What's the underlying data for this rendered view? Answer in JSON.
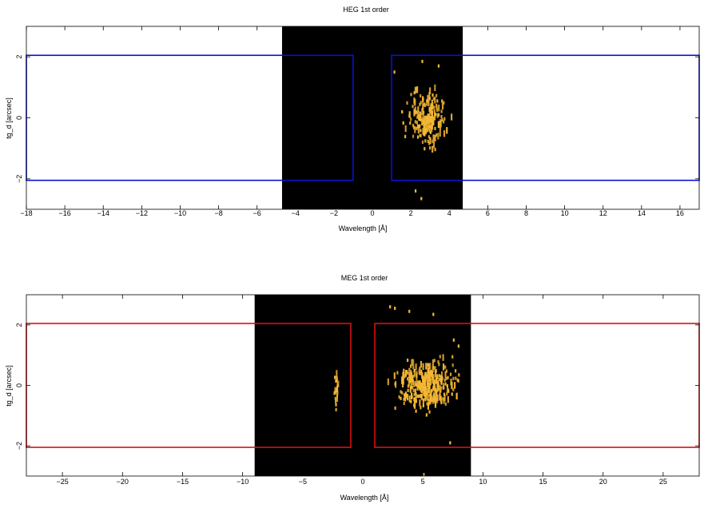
{
  "chart_data": [
    {
      "type": "heatmap",
      "title": "HEG 1st order",
      "xlabel": "Wavelength [Å]",
      "ylabel": "tg_d [arcsec]",
      "xlim": [
        -18,
        17
      ],
      "ylim": [
        -3.0,
        3.0
      ],
      "x_ticks": [
        -18,
        -16,
        -14,
        -12,
        -10,
        -8,
        -6,
        -4,
        -2,
        0,
        2,
        4,
        6,
        8,
        10,
        12,
        14,
        16
      ],
      "x_tick_labels": [
        "−18",
        "−16",
        "−14",
        "−12",
        "−10",
        "−8",
        "−6",
        "−4",
        "−2",
        "0",
        "2",
        "4",
        "6",
        "8",
        "10",
        "12",
        "14",
        "16"
      ],
      "y_ticks": [
        -2,
        0,
        2
      ],
      "y_tick_labels": [
        "−2",
        "0",
        "2"
      ],
      "image_extent_x": [
        -4.7,
        4.7
      ],
      "image_background": "#000000",
      "event_color": "#f5b835",
      "event_cluster": {
        "x_center": 2.8,
        "x_halfwidth": 1.4,
        "y_center": 0.0,
        "y_halfwidth": 1.3,
        "count": 190
      },
      "event_strays": [
        [
          2.5,
          -2.65
        ],
        [
          2.2,
          -2.4
        ],
        [
          2.55,
          1.85
        ],
        [
          3.4,
          1.7
        ],
        [
          1.1,
          1.5
        ]
      ],
      "regions": [
        {
          "x0": -18,
          "x1": -1.0,
          "y0": -2.05,
          "y1": 2.05
        },
        {
          "x0": 1.0,
          "x1": 17,
          "y0": -2.05,
          "y1": 2.05
        }
      ],
      "region_color": "#0a10d8"
    },
    {
      "type": "heatmap",
      "title": "MEG 1st order",
      "xlabel": "Wavelength [Å]",
      "ylabel": "tg_d [arcsec]",
      "xlim": [
        -28,
        28
      ],
      "ylim": [
        -3.0,
        3.0
      ],
      "x_ticks": [
        -25,
        -20,
        -15,
        -10,
        -5,
        0,
        5,
        10,
        15,
        20,
        25
      ],
      "x_tick_labels": [
        "−25",
        "−20",
        "−15",
        "−10",
        "−5",
        "0",
        "5",
        "10",
        "15",
        "20",
        "25"
      ],
      "y_ticks": [
        -2,
        0,
        2
      ],
      "y_tick_labels": [
        "−2",
        "0",
        "2"
      ],
      "image_extent_x": [
        -9.0,
        9.0
      ],
      "image_background": "#000000",
      "event_color": "#f5b835",
      "event_cluster": {
        "x_center": 5.2,
        "x_halfwidth": 3.4,
        "y_center": 0.0,
        "y_halfwidth": 1.1,
        "count": 320
      },
      "event_cluster_left": {
        "x_center": -2.3,
        "x_halfwidth": 0.25,
        "y_center": -0.1,
        "y_halfwidth": 0.9,
        "count": 22
      },
      "event_strays": [
        [
          2.2,
          2.6
        ],
        [
          2.6,
          2.55
        ],
        [
          3.8,
          2.45
        ],
        [
          5.8,
          2.35
        ],
        [
          7.5,
          1.5
        ],
        [
          7.9,
          1.3
        ],
        [
          7.2,
          -1.9
        ],
        [
          5.0,
          -2.95
        ]
      ],
      "regions": [
        {
          "x0": -28,
          "x1": -1.0,
          "y0": -2.05,
          "y1": 2.05
        },
        {
          "x0": 1.0,
          "x1": 28,
          "y0": -2.05,
          "y1": 2.05
        }
      ],
      "region_color": "#d81010"
    }
  ]
}
